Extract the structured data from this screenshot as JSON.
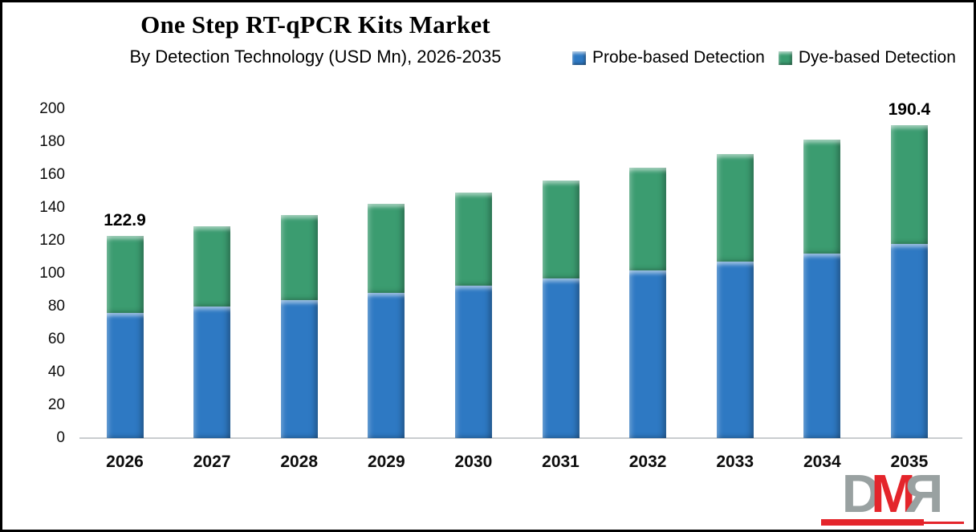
{
  "header": {
    "title": "One Step RT-qPCR Kits Market",
    "subtitle": "By Detection Technology (USD Mn), 2026-2035"
  },
  "legend": {
    "items": [
      {
        "label": "Probe-based Detection",
        "color": "#2E79C3"
      },
      {
        "label": "Dye-based Detection",
        "color": "#3B9C70"
      }
    ]
  },
  "chart_data": {
    "type": "bar",
    "stacked": true,
    "title": "One Step RT-qPCR Kits Market",
    "subtitle": "By Detection Technology (USD Mn), 2026-2035",
    "unit": "USD Mn",
    "categories": [
      "2026",
      "2027",
      "2028",
      "2029",
      "2030",
      "2031",
      "2032",
      "2033",
      "2034",
      "2035"
    ],
    "series": [
      {
        "name": "Probe-based Detection",
        "color": "#2E79C3",
        "values": [
          76.1,
          79.9,
          83.9,
          88.1,
          92.5,
          97.1,
          102.0,
          107.1,
          112.4,
          118.0
        ]
      },
      {
        "name": "Dye-based Detection",
        "color": "#3B9C70",
        "values": [
          46.8,
          49.1,
          51.5,
          54.1,
          56.8,
          59.6,
          62.5,
          65.6,
          68.9,
          72.4
        ]
      }
    ],
    "totals": [
      122.9,
      129.0,
      135.4,
      142.2,
      149.3,
      156.7,
      164.5,
      172.7,
      181.3,
      190.4
    ],
    "data_labels": [
      {
        "category": "2026",
        "text": "122.9"
      },
      {
        "category": "2035",
        "text": "190.4"
      }
    ],
    "yticks": [
      0,
      20,
      40,
      60,
      80,
      100,
      120,
      140,
      160,
      180,
      200
    ],
    "ylim": [
      0,
      200
    ],
    "grid": false,
    "legend_position": "top-right"
  },
  "logo": {
    "text": "DMR",
    "letters": [
      "D",
      "M",
      "R"
    ],
    "gray": "#99A1A1",
    "red": "#E4252B"
  }
}
